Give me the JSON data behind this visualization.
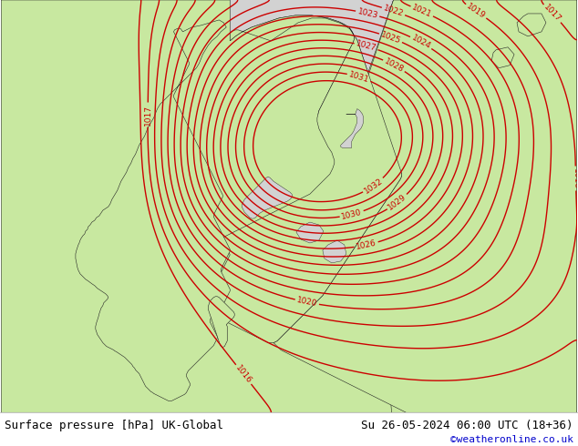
{
  "title_left": "Surface pressure [hPa] UK-Global",
  "title_right": "Su 26-05-2024 06:00 UTC (18+36)",
  "credit": "©weatheronline.co.uk",
  "bg_color": "#d2d2d2",
  "land_color": "#c8e8a0",
  "sea_color": "#d2d2d2",
  "contour_color": "#cc0000",
  "border_color": "#222222",
  "text_color": "#000000",
  "credit_color": "#0000cc",
  "fig_width": 6.34,
  "fig_height": 4.9,
  "dpi": 100,
  "font_size_bottom": 9,
  "font_size_credit": 8,
  "bottom_bar_color": "#ffffff",
  "contour_lw": 1.0,
  "label_fontsize": 6.5
}
